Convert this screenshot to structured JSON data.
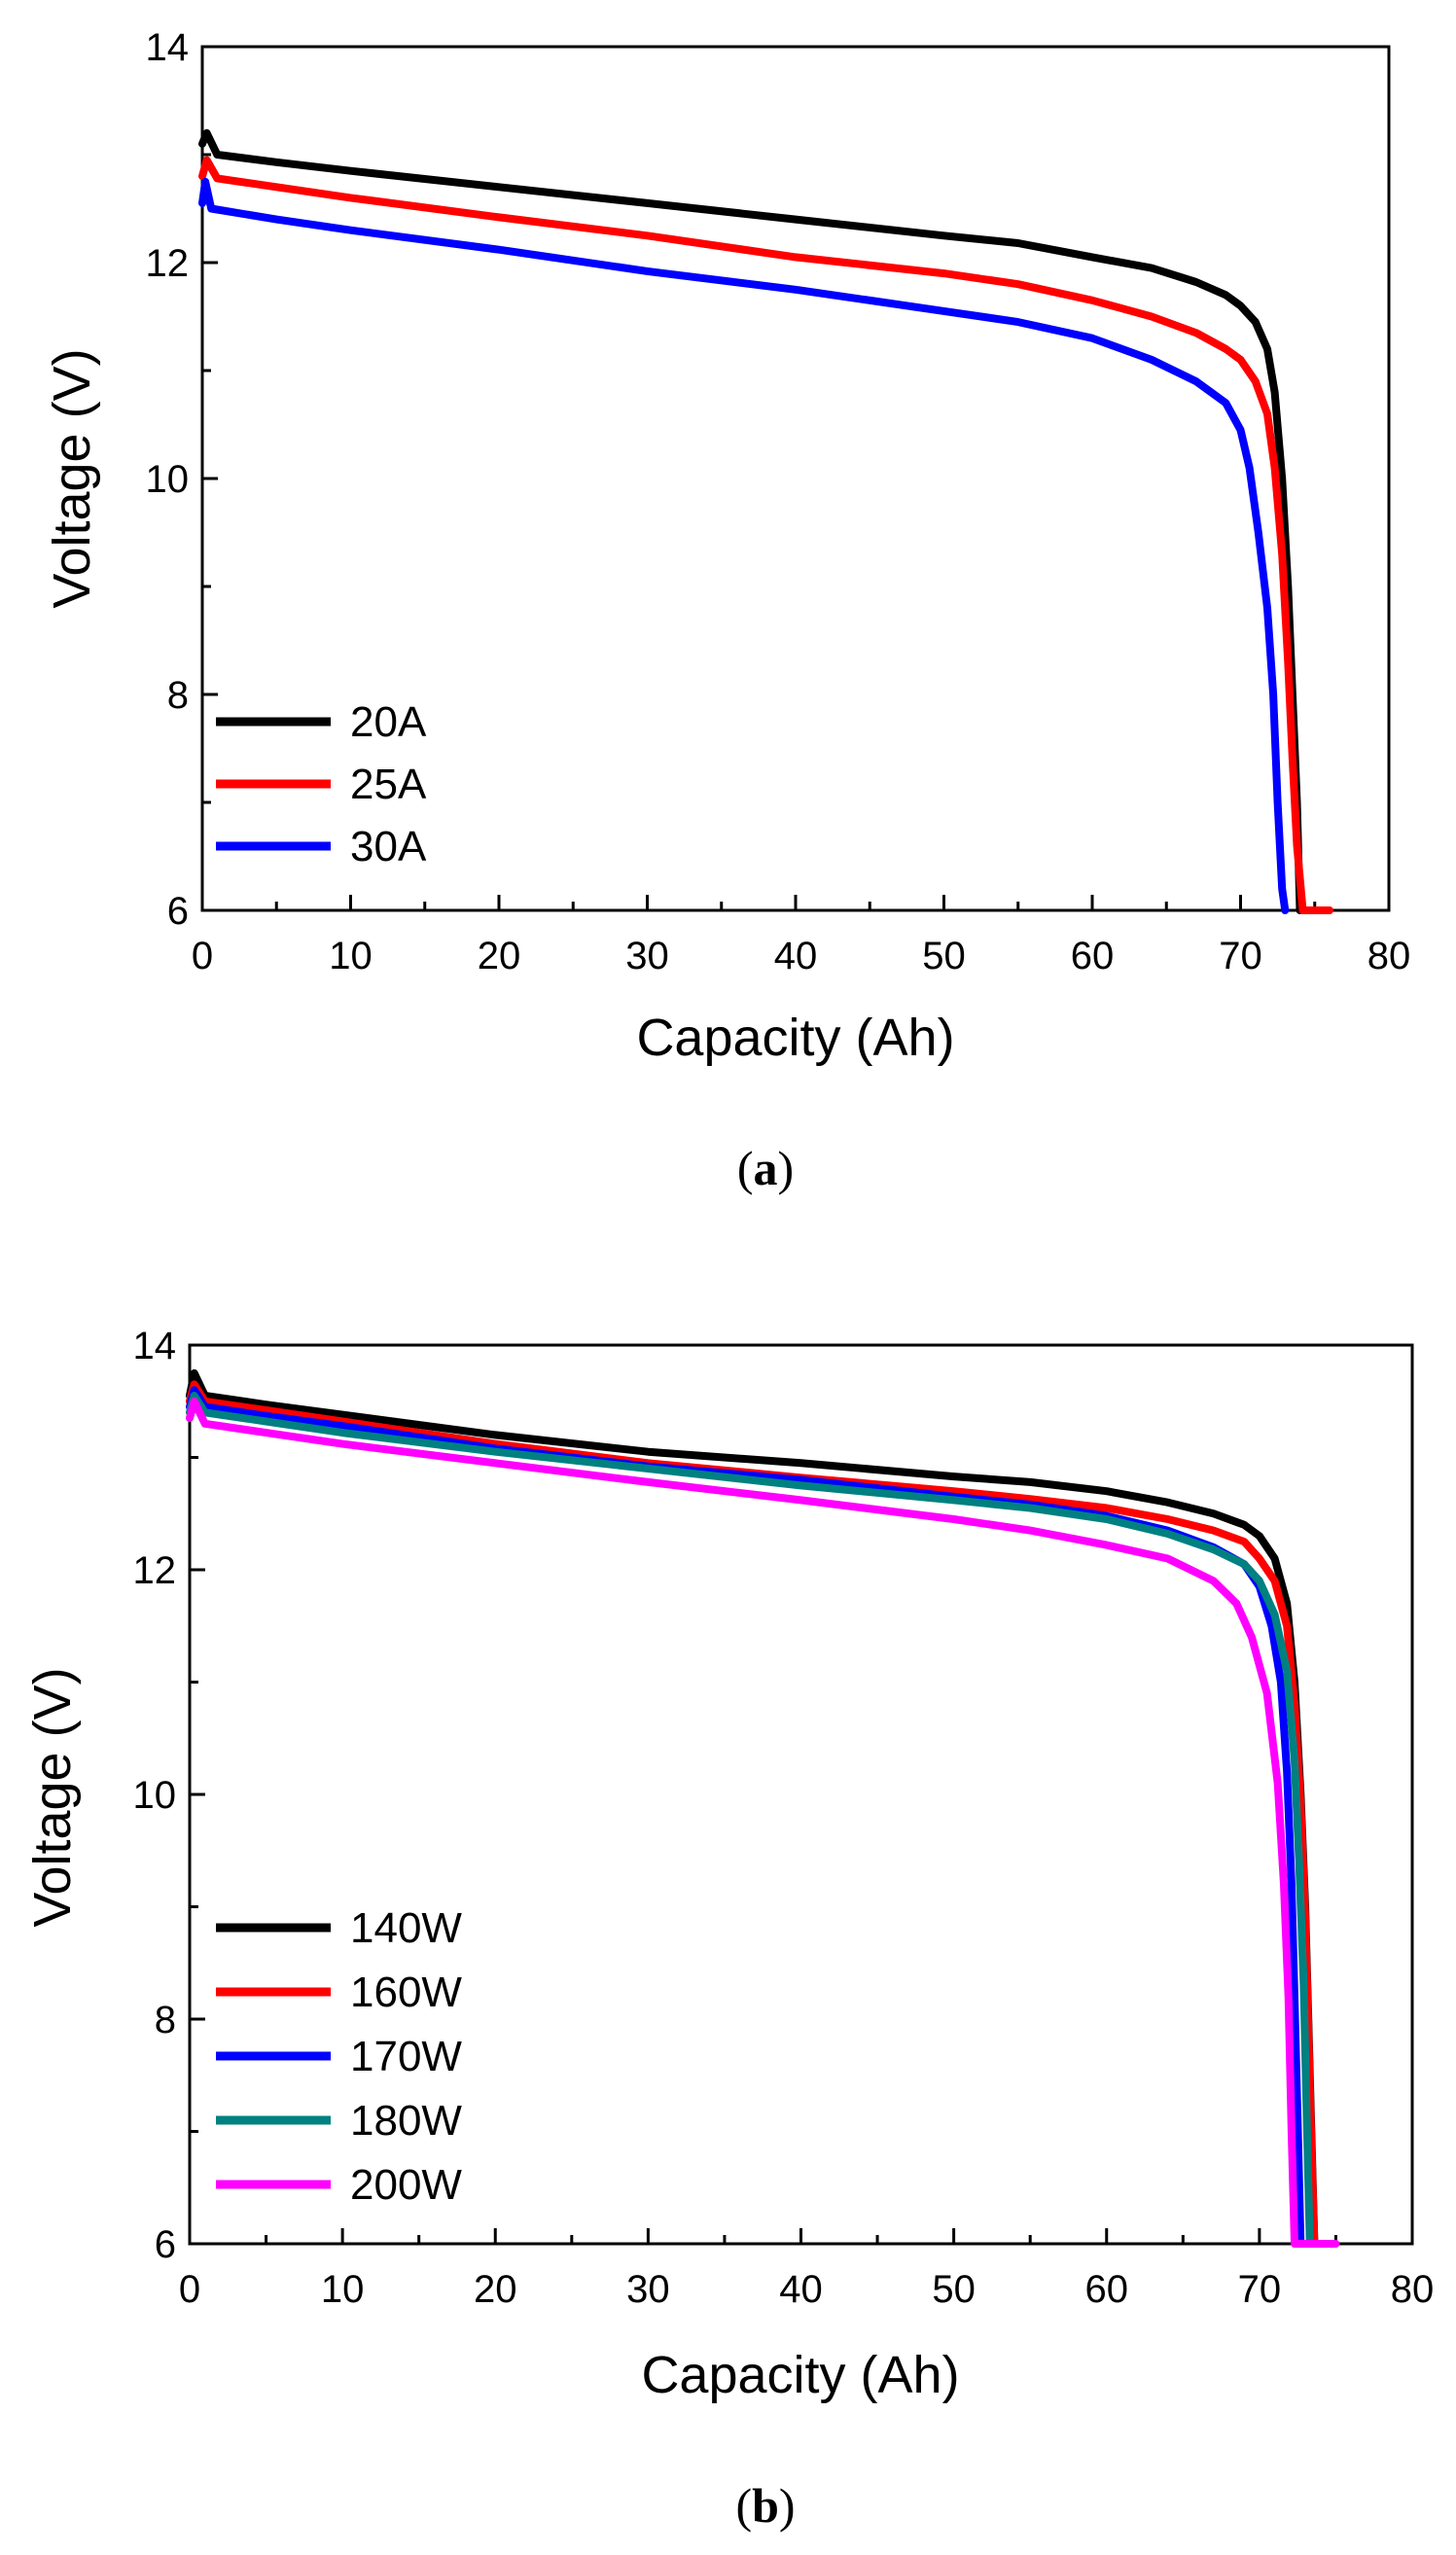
{
  "chart_data": [
    {
      "type": "line",
      "panel_label_open": "(",
      "panel_label_letter": "a",
      "panel_label_close": ")",
      "xlabel": "Capacity (Ah)",
      "ylabel": "Voltage (V)",
      "xlim": [
        0,
        80
      ],
      "ylim": [
        6,
        14
      ],
      "xticks": [
        0,
        10,
        20,
        30,
        40,
        50,
        60,
        70,
        80
      ],
      "yticks": [
        6,
        8,
        10,
        12,
        14
      ],
      "legend_position": "bottom-left",
      "series": [
        {
          "name": "20A",
          "color": "#000000",
          "x": [
            0,
            0.3,
            1,
            5,
            10,
            20,
            30,
            40,
            50,
            55,
            60,
            64,
            67,
            69,
            70,
            71,
            71.8,
            72.3,
            72.8,
            73.2,
            73.5,
            73.8,
            74.0
          ],
          "y": [
            13.1,
            13.2,
            13.0,
            12.93,
            12.85,
            12.7,
            12.55,
            12.4,
            12.25,
            12.18,
            12.05,
            11.95,
            11.82,
            11.7,
            11.6,
            11.45,
            11.2,
            10.8,
            10.0,
            9.0,
            8.0,
            7.0,
            6.0
          ]
        },
        {
          "name": "25A",
          "color": "#ff0000",
          "x": [
            0,
            0.3,
            1,
            5,
            10,
            20,
            30,
            40,
            50,
            55,
            60,
            64,
            67,
            69,
            70,
            71,
            71.8,
            72.3,
            72.8,
            73.2,
            73.5,
            73.8,
            74.2,
            76
          ],
          "y": [
            12.8,
            12.95,
            12.78,
            12.7,
            12.6,
            12.42,
            12.25,
            12.05,
            11.9,
            11.8,
            11.65,
            11.5,
            11.35,
            11.2,
            11.1,
            10.9,
            10.6,
            10.1,
            9.3,
            8.3,
            7.4,
            6.6,
            6.0,
            6.0
          ]
        },
        {
          "name": "30A",
          "color": "#0000ff",
          "x": [
            0,
            0.2,
            0.6,
            5,
            10,
            20,
            30,
            40,
            50,
            55,
            60,
            64,
            67,
            69,
            70,
            70.6,
            71.2,
            71.8,
            72.2,
            72.5,
            72.8,
            73.0
          ],
          "y": [
            12.55,
            12.75,
            12.5,
            12.4,
            12.3,
            12.12,
            11.92,
            11.75,
            11.55,
            11.45,
            11.3,
            11.1,
            10.9,
            10.7,
            10.45,
            10.1,
            9.5,
            8.8,
            8.0,
            7.0,
            6.2,
            6.0
          ]
        }
      ]
    },
    {
      "type": "line",
      "panel_label_open": "(",
      "panel_label_letter": "b",
      "panel_label_close": ")",
      "xlabel": "Capacity (Ah)",
      "ylabel": "Voltage (V)",
      "xlim": [
        0,
        80
      ],
      "ylim": [
        6,
        14
      ],
      "xticks": [
        0,
        10,
        20,
        30,
        40,
        50,
        60,
        70,
        80
      ],
      "yticks": [
        6,
        8,
        10,
        12,
        14
      ],
      "legend_position": "bottom-left",
      "series": [
        {
          "name": "140W",
          "color": "#000000",
          "x": [
            0,
            0.3,
            1,
            5,
            10,
            20,
            30,
            40,
            50,
            55,
            60,
            64,
            67,
            69,
            70,
            71,
            71.8,
            72.3,
            72.7,
            73.0,
            73.2,
            73.4,
            73.6
          ],
          "y": [
            13.55,
            13.75,
            13.55,
            13.47,
            13.38,
            13.2,
            13.05,
            12.95,
            12.83,
            12.78,
            12.7,
            12.6,
            12.5,
            12.4,
            12.3,
            12.1,
            11.7,
            11.0,
            10.0,
            9.0,
            8.0,
            7.0,
            6.0
          ]
        },
        {
          "name": "160W",
          "color": "#ff0000",
          "x": [
            0,
            0.3,
            1,
            5,
            10,
            20,
            30,
            40,
            50,
            55,
            60,
            64,
            67,
            69,
            70,
            71,
            71.8,
            72.3,
            72.7,
            73.0,
            73.2,
            73.4,
            73.6
          ],
          "y": [
            13.5,
            13.65,
            13.5,
            13.42,
            13.32,
            13.12,
            12.95,
            12.82,
            12.7,
            12.63,
            12.55,
            12.45,
            12.35,
            12.25,
            12.1,
            11.9,
            11.5,
            10.8,
            9.9,
            8.9,
            7.9,
            6.9,
            6.0
          ]
        },
        {
          "name": "170W",
          "color": "#0000ff",
          "x": [
            0,
            0.3,
            1,
            5,
            10,
            20,
            30,
            40,
            50,
            55,
            60,
            64,
            67,
            69,
            70,
            70.8,
            71.4,
            71.8,
            72.1,
            72.3,
            72.5,
            72.7
          ],
          "y": [
            13.45,
            13.6,
            13.45,
            13.37,
            13.28,
            13.08,
            12.92,
            12.8,
            12.65,
            12.58,
            12.48,
            12.35,
            12.2,
            12.05,
            11.85,
            11.5,
            11.0,
            10.2,
            9.2,
            8.2,
            7.1,
            6.0
          ]
        },
        {
          "name": "180W",
          "color": "#008080",
          "x": [
            0,
            0.3,
            1,
            5,
            10,
            20,
            30,
            40,
            50,
            55,
            60,
            64,
            67,
            69,
            70,
            71,
            71.8,
            72.3,
            72.6,
            72.9,
            73.1,
            73.3
          ],
          "y": [
            13.4,
            13.55,
            13.4,
            13.32,
            13.22,
            13.05,
            12.9,
            12.75,
            12.62,
            12.55,
            12.45,
            12.32,
            12.18,
            12.05,
            11.9,
            11.6,
            11.1,
            10.3,
            9.4,
            8.3,
            7.1,
            6.0
          ]
        },
        {
          "name": "200W",
          "color": "#ff00ff",
          "x": [
            0,
            0.3,
            1,
            5,
            10,
            20,
            30,
            40,
            50,
            55,
            60,
            64,
            67,
            68.5,
            69.5,
            70.5,
            71.2,
            71.6,
            71.9,
            72.1,
            72.3,
            75
          ],
          "y": [
            13.35,
            13.5,
            13.3,
            13.22,
            13.12,
            12.95,
            12.78,
            12.62,
            12.45,
            12.35,
            12.22,
            12.1,
            11.9,
            11.7,
            11.4,
            10.9,
            10.1,
            9.2,
            8.2,
            7.0,
            6.0,
            6.0
          ]
        }
      ]
    }
  ]
}
